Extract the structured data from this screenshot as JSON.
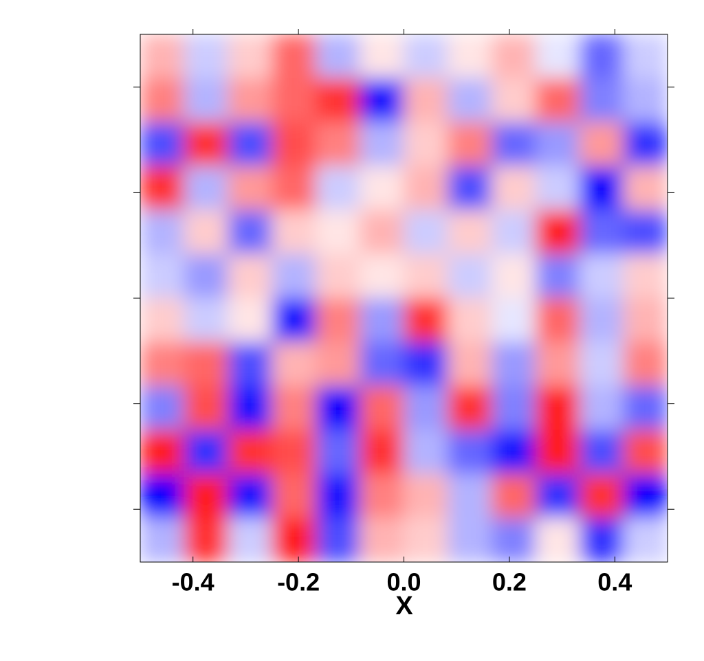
{
  "chart_data": {
    "type": "heatmap",
    "xlabel": "X",
    "xlim": [
      -0.5,
      0.5
    ],
    "ylim": [
      -0.5,
      0.5
    ],
    "xticks": [
      -0.4,
      -0.2,
      {
        "value": 0,
        "label": "0.0"
      },
      0.2,
      0.4
    ],
    "yticks": [
      -0.4,
      -0.2,
      0,
      0.2,
      0.4
    ],
    "clim": [
      -1,
      1
    ],
    "colormap": [
      "#0000ff",
      "#ffffff",
      "#ff0000"
    ],
    "z": [
      [
        0.3,
        -0.2,
        0.2,
        0.6,
        -0.3,
        0.1,
        -0.2,
        0.1,
        0.3,
        -0.1,
        -0.6,
        -0.2
      ],
      [
        0.5,
        -0.3,
        0.4,
        0.6,
        0.8,
        -0.9,
        0.3,
        -0.3,
        0.2,
        0.6,
        -0.5,
        -0.3
      ],
      [
        -0.7,
        0.8,
        -0.7,
        0.7,
        0.5,
        -0.3,
        0.2,
        0.5,
        -0.6,
        -0.4,
        0.4,
        -0.8
      ],
      [
        0.8,
        -0.3,
        0.4,
        0.6,
        -0.2,
        0.1,
        0.3,
        -0.7,
        0.2,
        -0.2,
        -1,
        0.3
      ],
      [
        -0.3,
        0.2,
        -0.6,
        0.2,
        0.1,
        0.3,
        -0.2,
        0.2,
        -0.2,
        0.9,
        -0.6,
        -0.7
      ],
      [
        -0.2,
        -0.4,
        0.2,
        -0.3,
        0.2,
        0.1,
        0.2,
        -0.2,
        0.1,
        -0.5,
        -0.2,
        0.2
      ],
      [
        0.2,
        -0.2,
        0.1,
        -0.9,
        0.5,
        -0.4,
        0.8,
        0.2,
        -0.1,
        0.6,
        -0.3,
        0.3
      ],
      [
        0.5,
        0.6,
        -0.7,
        0.3,
        0.4,
        -0.6,
        -0.8,
        0.3,
        -0.4,
        0.4,
        -0.2,
        0.5
      ],
      [
        -0.5,
        0.7,
        -0.9,
        0.5,
        -1,
        0.6,
        -0.4,
        0.8,
        -0.5,
        0.9,
        -0.3,
        -0.6
      ],
      [
        0.9,
        -0.8,
        0.8,
        0.7,
        -0.6,
        0.8,
        -0.3,
        -0.6,
        -0.9,
        0.9,
        -0.7,
        0.7
      ],
      [
        -1,
        0.9,
        -0.9,
        0.6,
        -0.9,
        0.5,
        0.3,
        -0.3,
        0.6,
        -0.8,
        0.8,
        -1
      ],
      [
        -0.3,
        0.8,
        -0.2,
        0.9,
        -0.7,
        0.3,
        0.2,
        -0.3,
        -0.5,
        0.1,
        -0.8,
        -0.2
      ]
    ]
  }
}
